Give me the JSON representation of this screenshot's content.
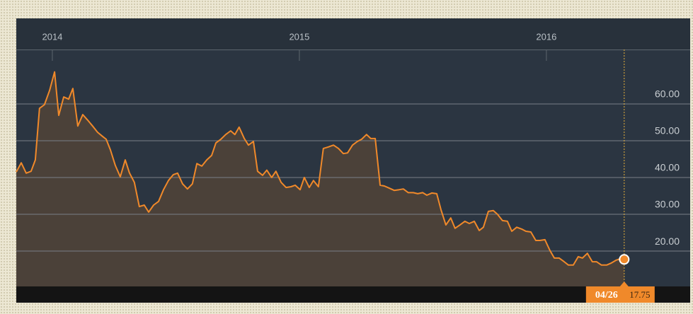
{
  "chart_data": {
    "type": "area",
    "x": [
      2013.854,
      2013.874,
      2013.894,
      2013.914,
      2013.931,
      2013.948,
      2013.968,
      2013.989,
      2014.009,
      2014.026,
      2014.046,
      2014.066,
      2014.083,
      2014.103,
      2014.123,
      2014.143,
      2014.163,
      2014.183,
      2014.203,
      2014.218,
      2014.235,
      2014.255,
      2014.275,
      2014.295,
      2014.312,
      2014.332,
      2014.352,
      2014.372,
      2014.39,
      2014.41,
      2014.43,
      2014.45,
      2014.47,
      2014.49,
      2014.507,
      2014.527,
      2014.547,
      2014.567,
      2014.585,
      2014.605,
      2014.625,
      2014.645,
      2014.662,
      2014.682,
      2014.702,
      2014.722,
      2014.739,
      2014.756,
      2014.777,
      2014.794,
      2014.814,
      2014.831,
      2014.851,
      2014.868,
      2014.888,
      2014.905,
      2014.926,
      2014.946,
      2014.966,
      2014.983,
      2015.003,
      2015.02,
      2015.04,
      2015.057,
      2015.077,
      2015.097,
      2015.117,
      2015.138,
      2015.158,
      2015.178,
      2015.195,
      2015.215,
      2015.235,
      2015.252,
      2015.272,
      2015.289,
      2015.307,
      2015.327,
      2015.344,
      2015.364,
      2015.384,
      2015.404,
      2015.421,
      2015.441,
      2015.461,
      2015.479,
      2015.499,
      2015.516,
      2015.536,
      2015.556,
      2015.573,
      2015.593,
      2015.613,
      2015.63,
      2015.65,
      2015.67,
      2015.688,
      2015.708,
      2015.728,
      2015.745,
      2015.765,
      2015.785,
      2015.802,
      2015.822,
      2015.842,
      2015.86,
      2015.88,
      2015.9,
      2015.917,
      2015.937,
      2015.957,
      2015.974,
      2015.994,
      2016.014,
      2016.032,
      2016.052,
      2016.072,
      2016.089,
      2016.109,
      2016.129,
      2016.146,
      2016.166,
      2016.186,
      2016.203,
      2016.223,
      2016.244,
      2016.261,
      2016.281,
      2016.298,
      2016.315
    ],
    "series": [
      {
        "color": "#f0892a",
        "values": [
          41.5,
          44.0,
          41.2,
          41.7,
          44.8,
          58.8,
          59.8,
          63.7,
          68.7,
          56.9,
          61.9,
          61.3,
          64.2,
          54.0,
          57.1,
          55.6,
          54.0,
          52.3,
          51.2,
          50.4,
          47.5,
          43.3,
          40.2,
          44.8,
          41.3,
          38.7,
          32.1,
          32.5,
          30.6,
          32.5,
          33.5,
          36.7,
          39.2,
          40.8,
          41.2,
          38.3,
          36.9,
          38.3,
          43.8,
          43.1,
          44.8,
          46.0,
          49.4,
          50.4,
          51.7,
          52.7,
          51.7,
          53.7,
          50.6,
          48.8,
          49.8,
          41.7,
          40.6,
          42.0,
          40.0,
          41.7,
          38.7,
          37.3,
          37.5,
          37.9,
          36.7,
          40.0,
          37.3,
          39.2,
          37.5,
          47.9,
          48.3,
          48.8,
          47.9,
          46.5,
          46.7,
          48.8,
          49.8,
          50.4,
          51.7,
          50.6,
          50.6,
          37.9,
          37.7,
          37.1,
          36.5,
          36.7,
          36.9,
          35.9,
          35.9,
          35.6,
          35.9,
          35.2,
          35.8,
          35.6,
          31.3,
          27.1,
          29.0,
          26.2,
          27.1,
          28.1,
          27.5,
          28.1,
          25.6,
          26.5,
          30.8,
          31.0,
          30.0,
          28.3,
          28.1,
          25.4,
          26.5,
          26.0,
          25.4,
          25.2,
          22.9,
          22.9,
          23.1,
          20.2,
          18.1,
          18.1,
          17.1,
          16.2,
          16.2,
          18.5,
          18.1,
          19.4,
          17.1,
          17.1,
          16.2,
          16.2,
          16.7,
          17.5,
          17.9,
          17.75
        ]
      }
    ],
    "xlim": [
      2013.854,
      2016.582
    ],
    "xticks": [
      2014,
      2015,
      2016
    ],
    "ylim": [
      10.4,
      74.8
    ],
    "yticks": [
      {
        "value": 20,
        "label": "20.00"
      },
      {
        "value": 30,
        "label": "30.00"
      },
      {
        "value": 40,
        "label": "40.00"
      },
      {
        "value": 50,
        "label": "50.00"
      },
      {
        "value": 60,
        "label": "60.00"
      }
    ],
    "grid": true,
    "cursor": {
      "x": 2016.315,
      "date": "04/26",
      "value": 17.75
    }
  }
}
